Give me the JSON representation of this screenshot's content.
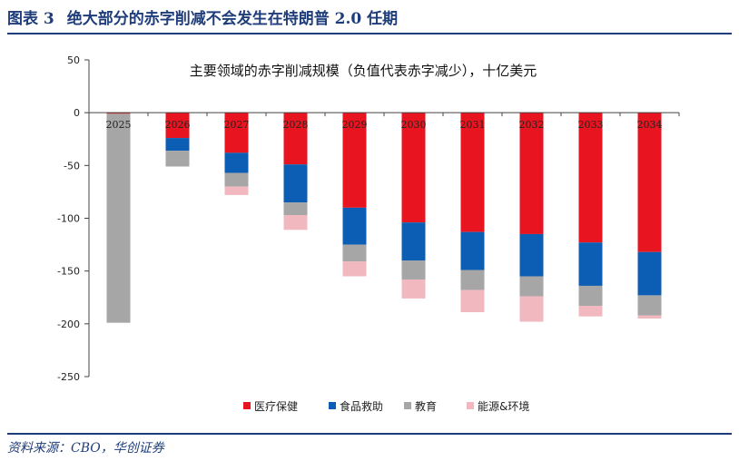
{
  "figure": {
    "label": "图表 3",
    "title": "绝大部分的赤字削减不会发生在特朗普 2.0 任期",
    "source": "资料来源：CBO，华创证券"
  },
  "chart_data": {
    "type": "bar",
    "stacked": true,
    "title": "主要领域的赤字削减规模（负值代表赤字减少），十亿美元",
    "categories": [
      "2025",
      "2026",
      "2027",
      "2028",
      "2029",
      "2030",
      "2031",
      "2032",
      "2033",
      "2034"
    ],
    "series": [
      {
        "name": "医疗保健",
        "color": "#e8141f",
        "values": [
          -1,
          -24,
          -38,
          -49,
          -90,
          -104,
          -113,
          -115,
          -123,
          -132
        ]
      },
      {
        "name": "食品救助",
        "color": "#0b5eb3",
        "values": [
          0,
          -12,
          -19,
          -36,
          -35,
          -36,
          -36,
          -40,
          -41,
          -41
        ]
      },
      {
        "name": "教育",
        "color": "#a6a6a6",
        "values": [
          -198,
          -15,
          -13,
          -12,
          -16,
          -18,
          -19,
          -19,
          -19,
          -19
        ]
      },
      {
        "name": "能源&环境",
        "color": "#f2b8bf",
        "values": [
          0,
          0,
          -8,
          -14,
          -14,
          -18,
          -21,
          -24,
          -10,
          -3
        ]
      }
    ],
    "yticks": [
      50,
      0,
      -50,
      -100,
      -150,
      -200,
      -250
    ],
    "ylim": [
      -250,
      50
    ],
    "xlabel": "",
    "ylabel": "",
    "legend_position": "bottom-center",
    "grid": false
  }
}
